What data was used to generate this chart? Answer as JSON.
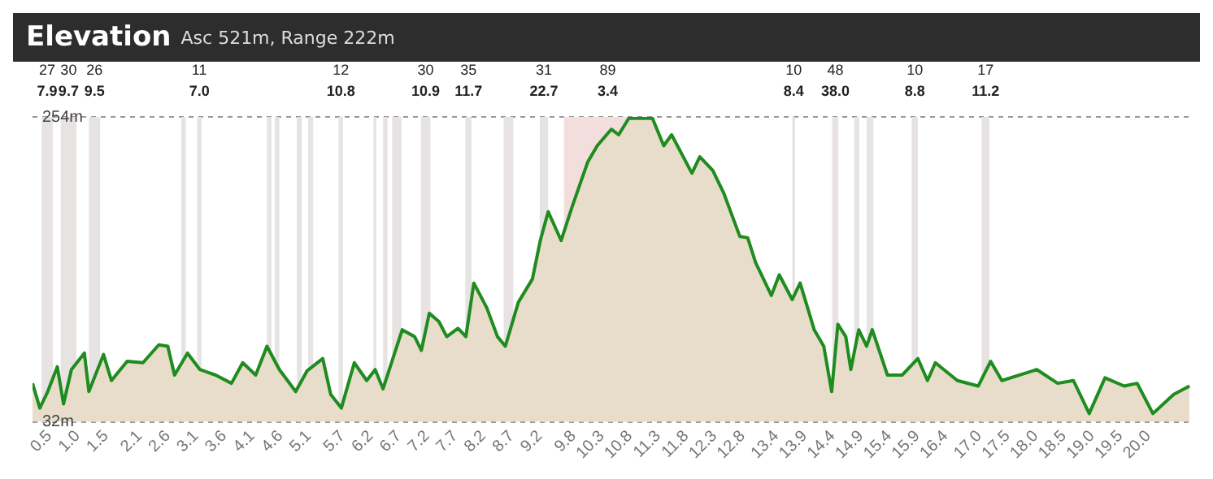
{
  "chart_data": {
    "type": "area",
    "title": "Elevation",
    "subtitle": "Asc 521m, Range 222m",
    "series": [
      {
        "color": "#1e8c1e",
        "x": [
          0.2,
          0.33,
          0.47,
          0.64,
          0.75,
          0.89,
          1.12,
          1.2,
          1.46,
          1.6,
          1.88,
          2.16,
          2.44,
          2.6,
          2.72,
          2.95,
          3.17,
          3.45,
          3.73,
          3.93,
          4.16,
          4.36,
          4.58,
          4.87,
          5.07,
          5.35,
          5.49,
          5.68,
          5.91,
          6.13,
          6.28,
          6.42,
          6.76,
          6.98,
          7.1,
          7.24,
          7.41,
          7.55,
          7.75,
          7.89,
          8.03,
          8.26,
          8.45,
          8.59,
          8.82,
          9.07,
          9.21,
          9.35,
          9.58,
          9.77,
          10.05,
          10.22,
          10.47,
          10.6,
          10.78,
          11.2,
          11.4,
          11.54,
          11.9,
          12.04,
          12.27,
          12.47,
          12.75,
          12.89,
          13.03,
          13.31,
          13.45,
          13.68,
          13.82,
          14.07,
          14.24,
          14.38,
          14.49,
          14.63,
          14.72,
          14.86,
          15.0,
          15.1,
          15.37,
          15.63,
          15.91,
          16.08,
          16.22,
          16.61,
          16.98,
          17.2,
          17.4,
          18.02,
          18.39,
          18.67,
          18.95,
          19.23,
          19.57,
          19.8,
          20.08,
          20.45,
          20.73
        ],
        "values": [
          60,
          42,
          54,
          72,
          45,
          70,
          82,
          54,
          81,
          62,
          76,
          75,
          88,
          87,
          66,
          82,
          70,
          66,
          60,
          75,
          66,
          87,
          70,
          54,
          69,
          78,
          52,
          42,
          75,
          62,
          70,
          56,
          99,
          94,
          84,
          111,
          105,
          94,
          100,
          94,
          133,
          115,
          94,
          87,
          119,
          136,
          164,
          185,
          164,
          188,
          221,
          233,
          245,
          241,
          253,
          253,
          233,
          241,
          213,
          225,
          215,
          198,
          167,
          166,
          148,
          124,
          139,
          121,
          133,
          99,
          87,
          54,
          103,
          94,
          70,
          99,
          87,
          99,
          66,
          66,
          78,
          62,
          75,
          62,
          58,
          76,
          62,
          70,
          60,
          62,
          38,
          64,
          58,
          60,
          38,
          52,
          58
        ]
      }
    ],
    "xlim": [
      0.2,
      20.8
    ],
    "xticks": [
      0.5,
      {
        "value": 1,
        "label": "1.0"
      },
      1.5,
      2.1,
      2.6,
      3.1,
      3.6,
      4.1,
      4.6,
      5.1,
      5.7,
      6.2,
      6.7,
      7.2,
      7.7,
      8.2,
      8.7,
      9.2,
      9.8,
      10.3,
      10.8,
      11.3,
      11.8,
      12.3,
      12.8,
      13.4,
      13.9,
      14.4,
      14.9,
      15.4,
      15.9,
      16.4,
      {
        "value": 17,
        "label": "17.0"
      },
      17.5,
      {
        "value": 18,
        "label": "18.0"
      },
      18.5,
      {
        "value": 19,
        "label": "19.0"
      },
      19.5,
      {
        "value": 20,
        "label": "20.0"
      }
    ],
    "ylim": [
      32,
      254
    ],
    "yticks": [
      {
        "value": 32,
        "label": "32m"
      },
      {
        "value": 254,
        "label": "254m"
      }
    ],
    "grid": "y",
    "legend": false,
    "bands": [
      {
        "axis": "x",
        "from": 0.36,
        "to": 0.56,
        "label": "27 7.9",
        "color": "#e8e3e3"
      },
      {
        "axis": "x",
        "from": 0.7,
        "to": 0.98,
        "label": "30 9.7",
        "color": "#e8e3e3"
      },
      {
        "axis": "x",
        "from": 1.2,
        "to": 1.4,
        "label": "26 9.5",
        "color": "#e8e3e3"
      },
      {
        "axis": "x",
        "from": 2.84,
        "to": 2.92,
        "color": "#e8e3e3"
      },
      {
        "axis": "x",
        "from": 3.12,
        "to": 3.2,
        "label": "11 7.0",
        "color": "#e8e3e3"
      },
      {
        "axis": "x",
        "from": 4.36,
        "to": 4.44,
        "color": "#e8e3e3"
      },
      {
        "axis": "x",
        "from": 4.5,
        "to": 4.58,
        "color": "#e8e3e3"
      },
      {
        "axis": "x",
        "from": 4.89,
        "to": 4.98,
        "color": "#e8e3e3"
      },
      {
        "axis": "x",
        "from": 5.09,
        "to": 5.18,
        "color": "#e8e3e3"
      },
      {
        "axis": "x",
        "from": 5.63,
        "to": 5.71,
        "label": "12 10.8",
        "color": "#e8e3e3"
      },
      {
        "axis": "x",
        "from": 6.25,
        "to": 6.3,
        "color": "#e8e3e3"
      },
      {
        "axis": "x",
        "from": 6.42,
        "to": 6.5,
        "color": "#e8e3e3"
      },
      {
        "axis": "x",
        "from": 6.58,
        "to": 6.75,
        "color": "#e8e3e3"
      },
      {
        "axis": "x",
        "from": 7.09,
        "to": 7.26,
        "label": "30 10.9",
        "color": "#e8e3e3"
      },
      {
        "axis": "x",
        "from": 7.88,
        "to": 7.99,
        "label": "35 11.7",
        "color": "#e8e3e3"
      },
      {
        "axis": "x",
        "from": 8.56,
        "to": 8.73,
        "color": "#e8e3e3"
      },
      {
        "axis": "x",
        "from": 9.2,
        "to": 9.35,
        "label": "31 22.7",
        "color": "#e8e3e3"
      },
      {
        "axis": "x",
        "from": 9.63,
        "to": 11.18,
        "label": "89 3.4",
        "color": "#f3dede"
      },
      {
        "axis": "x",
        "from": 13.68,
        "to": 13.73,
        "label": "10 8.4",
        "color": "#e8e3e3"
      },
      {
        "axis": "x",
        "from": 14.39,
        "to": 14.5,
        "label": "48 38.0",
        "color": "#e8e3e3"
      },
      {
        "axis": "x",
        "from": 14.78,
        "to": 14.87,
        "color": "#e8e3e3"
      },
      {
        "axis": "x",
        "from": 15.0,
        "to": 15.12,
        "color": "#e8e3e3"
      },
      {
        "axis": "x",
        "from": 15.8,
        "to": 15.91,
        "label": "10 8.8",
        "color": "#e8e3e3"
      },
      {
        "axis": "x",
        "from": 17.04,
        "to": 17.18,
        "label": "17 11.2",
        "color": "#e8e3e3"
      }
    ]
  }
}
